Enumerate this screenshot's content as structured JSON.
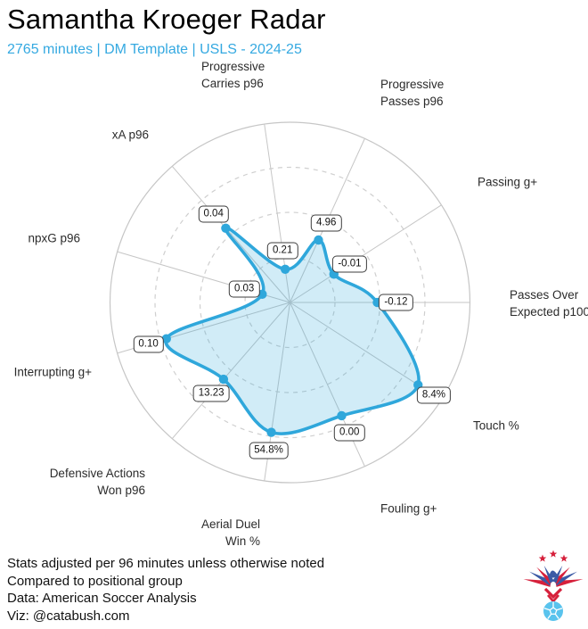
{
  "header": {
    "title": "Samantha Kroeger Radar",
    "subtitle": "2765 minutes | DM Template | USLS - 2024-25"
  },
  "chart_data": {
    "type": "radar",
    "note": "values shown in boxes at each vertex; radial position = percentile vs positional group (0-1 of outer ring)",
    "rings": [
      0.25,
      0.5,
      0.75,
      1.0
    ],
    "axes": [
      {
        "label": "Progressive Carries p96",
        "label_lines": [
          "Progressive",
          "Carries p96"
        ],
        "value": "0.21",
        "percentile": 0.186
      },
      {
        "label": "Progressive Passes p96",
        "label_lines": [
          "Progressive",
          "Passes p96"
        ],
        "value": "4.96",
        "percentile": 0.381
      },
      {
        "label": "Passing g+",
        "label_lines": [
          "Passing g+"
        ],
        "value": "-0.01",
        "percentile": 0.29
      },
      {
        "label": "Passes Over Expected p100",
        "label_lines": [
          "Passes Over",
          "Expected p100"
        ],
        "value": "-0.12",
        "percentile": 0.485
      },
      {
        "label": "Touch %",
        "label_lines": [
          "Touch %"
        ],
        "value": "8.4%",
        "percentile": 0.846
      },
      {
        "label": "Fouling g+",
        "label_lines": [
          "Fouling g+"
        ],
        "value": "0.00",
        "percentile": 0.691
      },
      {
        "label": "Aerial Duel Win %",
        "label_lines": [
          "Aerial Duel",
          "Win %"
        ],
        "value": "54.8%",
        "percentile": 0.728
      },
      {
        "label": "Defensive Actions Won p96",
        "label_lines": [
          "Defensive Actions",
          "Won p96"
        ],
        "value": "13.23",
        "percentile": 0.564
      },
      {
        "label": "Interrupting g+",
        "label_lines": [
          "Interrupting g+"
        ],
        "value": "0.10",
        "percentile": 0.716
      },
      {
        "label": "npxG p96",
        "label_lines": [
          "npxG p96"
        ],
        "value": "0.03",
        "percentile": 0.161
      },
      {
        "label": "xA p96",
        "label_lines": [
          "xA p96"
        ],
        "value": "0.04",
        "percentile": 0.545
      }
    ],
    "colors": {
      "line": "#2fa7db",
      "fill": "#2fa7db",
      "fill_opacity": 0.22,
      "grid": "#c6c6c6",
      "dashed_ring": "#cfcfcf",
      "subtitle": "#35a9e1"
    }
  },
  "footer": {
    "lines": [
      "Stats adjusted per 96 minutes unless otherwise noted",
      "Compared to positional group",
      "Data: American Soccer Analysis",
      "Viz: @catabush.com"
    ]
  },
  "logo": {
    "name": "catabush-crest-logo",
    "star_color": "#d6203b",
    "wing_red": "#d6203b",
    "wing_blue": "#3b5aa5",
    "ball_color": "#59c3ed"
  }
}
